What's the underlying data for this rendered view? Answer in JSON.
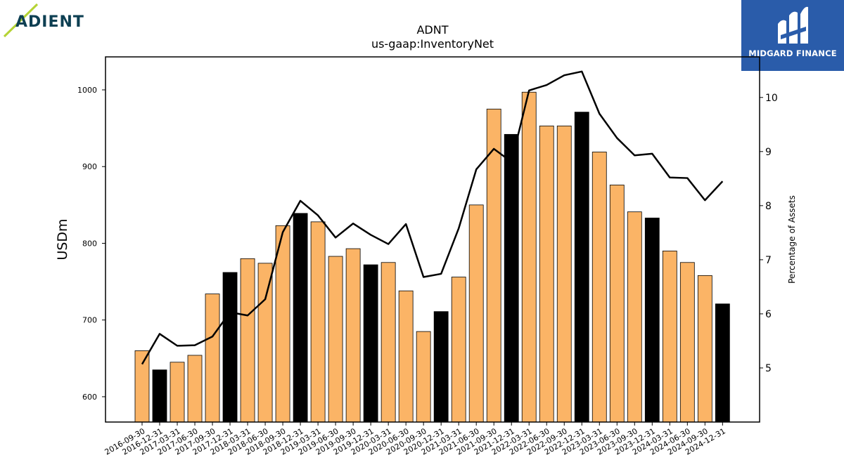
{
  "logos": {
    "left": {
      "text": "ADIENT",
      "name": "adient-logo"
    },
    "right": {
      "text": "MIDGARD FINANCE",
      "name": "midgard-finance-logo"
    }
  },
  "colors": {
    "bar_default": "#fbb466",
    "bar_highlight": "#000000",
    "line": "#000000",
    "brand_blue": "#2a5caa",
    "adient_teal": "#0d3f52",
    "adient_green": "#b5d334"
  },
  "chart_data": {
    "type": "bar",
    "title": "ADNT",
    "subtitle": "us-gaap:InventoryNet",
    "ylabel": "USDm",
    "y2label": "Percentage of Assets",
    "ylim": [
      567,
      1043
    ],
    "y2lim": [
      4.0,
      10.75
    ],
    "yticks": [
      600,
      700,
      800,
      900,
      1000
    ],
    "y2ticks": [
      5,
      6,
      7,
      8,
      9,
      10
    ],
    "categories": [
      "2016-09-30",
      "2016-12-31",
      "2017-03-31",
      "2017-06-30",
      "2017-09-30",
      "2017-12-31",
      "2018-03-31",
      "2018-06-30",
      "2018-09-30",
      "2018-12-31",
      "2019-03-31",
      "2019-06-30",
      "2019-09-30",
      "2019-12-31",
      "2020-03-31",
      "2020-06-30",
      "2020-09-30",
      "2020-12-31",
      "2021-03-31",
      "2021-06-30",
      "2021-09-30",
      "2021-12-31",
      "2022-03-31",
      "2022-06-30",
      "2022-09-30",
      "2022-12-31",
      "2023-03-31",
      "2023-06-30",
      "2023-09-30",
      "2023-12-31",
      "2024-03-31",
      "2024-06-30",
      "2024-09-30",
      "2024-12-31"
    ],
    "series": [
      {
        "kind": "bar",
        "axis": "left",
        "values": [
          660,
          635,
          645,
          654,
          734,
          762,
          780,
          774,
          823,
          839,
          828,
          783,
          793,
          772,
          775,
          738,
          685,
          711,
          756,
          850,
          975,
          942,
          997,
          953,
          953,
          971,
          919,
          876,
          841,
          833,
          790,
          775,
          758,
          721
        ],
        "highlight": [
          false,
          true,
          false,
          false,
          false,
          true,
          false,
          false,
          false,
          true,
          false,
          false,
          false,
          true,
          false,
          false,
          false,
          true,
          false,
          false,
          false,
          true,
          false,
          false,
          false,
          true,
          false,
          false,
          false,
          true,
          false,
          false,
          false,
          true
        ]
      },
      {
        "kind": "line",
        "axis": "right",
        "values": [
          5.07,
          5.63,
          5.41,
          5.42,
          5.58,
          6.03,
          5.97,
          6.27,
          7.51,
          8.09,
          7.82,
          7.41,
          7.67,
          7.46,
          7.29,
          7.66,
          6.68,
          6.74,
          7.58,
          8.67,
          9.05,
          8.81,
          10.13,
          10.23,
          10.41,
          10.48,
          9.7,
          9.25,
          8.93,
          8.96,
          8.52,
          8.51,
          8.1,
          8.45
        ]
      }
    ],
    "grid": false,
    "legend": "none"
  }
}
